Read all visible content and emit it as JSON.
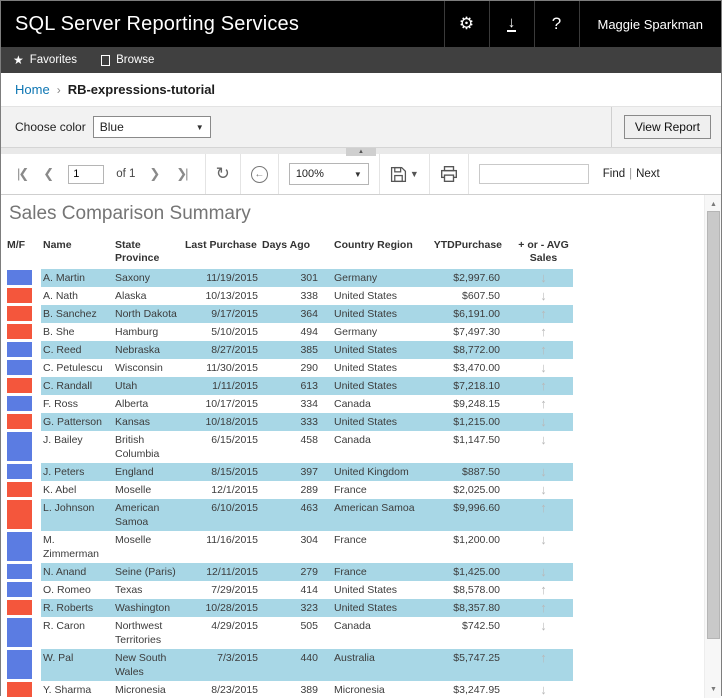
{
  "header": {
    "title": "SQL Server Reporting Services",
    "user": "Maggie Sparkman",
    "help_glyph": "?"
  },
  "nav": {
    "favorites_label": "Favorites",
    "browse_label": "Browse"
  },
  "breadcrumb": {
    "home": "Home",
    "separator": "›",
    "current": "RB-expressions-tutorial"
  },
  "parameters": {
    "label": "Choose color",
    "selected_value": "Blue",
    "view_report_label": "View Report"
  },
  "toolbar": {
    "page_value": "1",
    "of_label": "of 1",
    "zoom_value": "100%",
    "find_value": "",
    "find_label": "Find",
    "pipe": "|",
    "next_label": "Next"
  },
  "report": {
    "title": "Sales Comparison Summary",
    "columns": [
      "M/F",
      "Name",
      "State Province",
      "Last Purchase",
      "Days Ago",
      "Country Region",
      "YTDPurchase",
      "+ or - AVG Sales"
    ],
    "colors": {
      "blue_indicator": "#5b7ce2",
      "red_indicator": "#f4563c",
      "row_stripe": "#a8d7e6",
      "arrow": "#b9b9b9"
    },
    "rows": [
      {
        "indicator": "blue",
        "name": "A. Martin",
        "state": "Saxony",
        "last_purchase": "11/19/2015",
        "days_ago": "301",
        "country": "Germany",
        "ytd_purchase": "$2,997.60",
        "trend": "down"
      },
      {
        "indicator": "red",
        "name": "A. Nath",
        "state": "Alaska",
        "last_purchase": "10/13/2015",
        "days_ago": "338",
        "country": "United States",
        "ytd_purchase": "$607.50",
        "trend": "down"
      },
      {
        "indicator": "red",
        "name": "B. Sanchez",
        "state": "North Dakota",
        "last_purchase": "9/17/2015",
        "days_ago": "364",
        "country": "United States",
        "ytd_purchase": "$6,191.00",
        "trend": "up"
      },
      {
        "indicator": "red",
        "name": "B. She",
        "state": "Hamburg",
        "last_purchase": "5/10/2015",
        "days_ago": "494",
        "country": "Germany",
        "ytd_purchase": "$7,497.30",
        "trend": "up"
      },
      {
        "indicator": "blue",
        "name": "C. Reed",
        "state": "Nebraska",
        "last_purchase": "8/27/2015",
        "days_ago": "385",
        "country": "United States",
        "ytd_purchase": "$8,772.00",
        "trend": "up"
      },
      {
        "indicator": "blue",
        "name": "C. Petulescu",
        "state": "Wisconsin",
        "last_purchase": "11/30/2015",
        "days_ago": "290",
        "country": "United States",
        "ytd_purchase": "$3,470.00",
        "trend": "down"
      },
      {
        "indicator": "red",
        "name": "C. Randall",
        "state": "Utah",
        "last_purchase": "1/11/2015",
        "days_ago": "613",
        "country": "United States",
        "ytd_purchase": "$7,218.10",
        "trend": "up"
      },
      {
        "indicator": "blue",
        "name": "F. Ross",
        "state": "Alberta",
        "last_purchase": "10/17/2015",
        "days_ago": "334",
        "country": "Canada",
        "ytd_purchase": "$9,248.15",
        "trend": "up"
      },
      {
        "indicator": "red",
        "name": "G. Patterson",
        "state": "Kansas",
        "last_purchase": "10/18/2015",
        "days_ago": "333",
        "country": "United States",
        "ytd_purchase": "$1,215.00",
        "trend": "down"
      },
      {
        "indicator": "blue",
        "name": "J. Bailey",
        "state": "British Columbia",
        "last_purchase": "6/15/2015",
        "days_ago": "458",
        "country": "Canada",
        "ytd_purchase": "$1,147.50",
        "trend": "down"
      },
      {
        "indicator": "blue",
        "name": "J. Peters",
        "state": "England",
        "last_purchase": "8/15/2015",
        "days_ago": "397",
        "country": "United Kingdom",
        "ytd_purchase": "$887.50",
        "trend": "down"
      },
      {
        "indicator": "red",
        "name": "K. Abel",
        "state": "Moselle",
        "last_purchase": "12/1/2015",
        "days_ago": "289",
        "country": "France",
        "ytd_purchase": "$2,025.00",
        "trend": "down"
      },
      {
        "indicator": "red",
        "name": "L. Johnson",
        "state": "American Samoa",
        "last_purchase": "6/10/2015",
        "days_ago": "463",
        "country": "American Samoa",
        "ytd_purchase": "$9,996.60",
        "trend": "up"
      },
      {
        "indicator": "blue",
        "name": "M. Zimmerman",
        "state": "Moselle",
        "last_purchase": "11/16/2015",
        "days_ago": "304",
        "country": "France",
        "ytd_purchase": "$1,200.00",
        "trend": "down"
      },
      {
        "indicator": "blue",
        "name": "N. Anand",
        "state": "Seine (Paris)",
        "last_purchase": "12/11/2015",
        "days_ago": "279",
        "country": "France",
        "ytd_purchase": "$1,425.00",
        "trend": "down"
      },
      {
        "indicator": "blue",
        "name": "O. Romeo",
        "state": "Texas",
        "last_purchase": "7/29/2015",
        "days_ago": "414",
        "country": "United States",
        "ytd_purchase": "$8,578.00",
        "trend": "up"
      },
      {
        "indicator": "red",
        "name": "R. Roberts",
        "state": "Washington",
        "last_purchase": "10/28/2015",
        "days_ago": "323",
        "country": "United States",
        "ytd_purchase": "$8,357.80",
        "trend": "up"
      },
      {
        "indicator": "blue",
        "name": "R. Caron",
        "state": "Northwest Territories",
        "last_purchase": "4/29/2015",
        "days_ago": "505",
        "country": "Canada",
        "ytd_purchase": "$742.50",
        "trend": "down"
      },
      {
        "indicator": "blue",
        "name": "W. Pal",
        "state": "New South Wales",
        "last_purchase": "7/3/2015",
        "days_ago": "440",
        "country": "Australia",
        "ytd_purchase": "$5,747.25",
        "trend": "up"
      },
      {
        "indicator": "red",
        "name": "Y. Sharma",
        "state": "Micronesia",
        "last_purchase": "8/23/2015",
        "days_ago": "389",
        "country": "Micronesia",
        "ytd_purchase": "$3,247.95",
        "trend": "down"
      }
    ]
  }
}
